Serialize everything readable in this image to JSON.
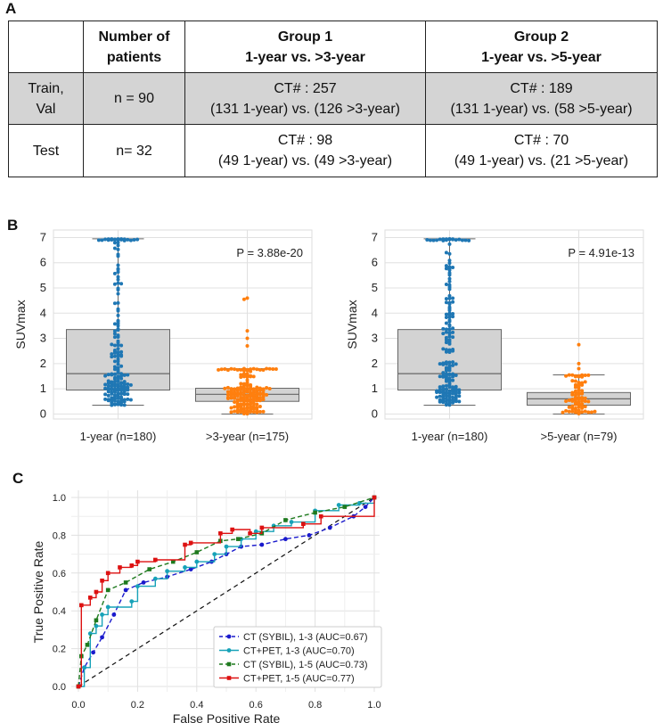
{
  "panel_labels": {
    "a": "A",
    "b": "B",
    "c": "C"
  },
  "table": {
    "headers": [
      {
        "line1": "",
        "line2": ""
      },
      {
        "line1": "Number of",
        "line2": "patients"
      },
      {
        "line1": "Group 1",
        "line2": "1-year vs. >3-year"
      },
      {
        "line1": "Group 2",
        "line2": "1-year vs. >5-year"
      }
    ],
    "rows": [
      {
        "label1": "Train,",
        "label2": "Val",
        "n": "n = 90",
        "g1_line1": "CT# : 257",
        "g1_line2": "(131 1-year) vs. (126 >3-year)",
        "g2_line1": "CT# : 189",
        "g2_line2": "(131 1-year) vs. (58 >5-year)"
      },
      {
        "label1": "Test",
        "label2": "",
        "n": "n= 32",
        "g1_line1": "CT# : 98",
        "g1_line2": "(49 1-year) vs. (49 >3-year)",
        "g2_line1": "CT# : 70",
        "g2_line2": "(49 1-year) vs. (21 >5-year)"
      }
    ]
  },
  "colors": {
    "blue": "#1f77b4",
    "orange": "#ff7f0e",
    "box_fill": "#d3d3d3",
    "grid": "#e0e0e0"
  },
  "chart_data": [
    {
      "type": "box+swarm",
      "ylabel": "SUVmax",
      "ylim": [
        -0.2,
        7.3
      ],
      "yticks": [
        "0",
        "1",
        "2",
        "3",
        "4",
        "5",
        "6",
        "7"
      ],
      "pvalue": "P = 3.88e-20",
      "categories": [
        "1-year (n=180)",
        ">3-year (n=175)"
      ],
      "boxes": [
        {
          "n": 180,
          "min": 0.35,
          "q1": 0.95,
          "median": 1.6,
          "q3": 3.35,
          "max": 6.95
        },
        {
          "n": 175,
          "min": 0.0,
          "q1": 0.5,
          "median": 0.78,
          "q3": 1.02,
          "max": 1.8,
          "outliers_top": [
            4.6,
            4.55,
            3.3,
            3.0,
            2.7
          ]
        }
      ]
    },
    {
      "type": "box+swarm",
      "ylabel": "SUVmax",
      "ylim": [
        -0.2,
        7.3
      ],
      "yticks": [
        "0",
        "1",
        "2",
        "3",
        "4",
        "5",
        "6",
        "7"
      ],
      "pvalue": "P = 4.91e-13",
      "categories": [
        "1-year (n=180)",
        ">5-year (n=79)"
      ],
      "boxes": [
        {
          "n": 180,
          "min": 0.35,
          "q1": 0.95,
          "median": 1.6,
          "q3": 3.35,
          "max": 6.95
        },
        {
          "n": 79,
          "min": 0.0,
          "q1": 0.35,
          "median": 0.6,
          "q3": 0.85,
          "max": 1.55,
          "outliers_top": [
            2.75,
            2.0,
            1.8
          ]
        }
      ]
    },
    {
      "type": "line",
      "title": "",
      "xlabel": "False Positive Rate",
      "ylabel": "True Positive Rate",
      "xlim": [
        0,
        1
      ],
      "ylim": [
        0,
        1
      ],
      "xticks": [
        "0.0",
        "0.2",
        "0.4",
        "0.6",
        "0.8",
        "1.0"
      ],
      "yticks": [
        "0.0",
        "0.2",
        "0.4",
        "0.6",
        "0.8",
        "1.0"
      ],
      "legend_position": "bottom-right",
      "series": [
        {
          "name": "CT (SYBIL), 1-3 (AUC=0.67)",
          "color": "#1a1acc",
          "dash": "dashed",
          "marker": "circle",
          "stepped": false,
          "x": [
            0,
            0.02,
            0.05,
            0.08,
            0.12,
            0.16,
            0.22,
            0.3,
            0.38,
            0.45,
            0.5,
            0.55,
            0.62,
            0.7,
            0.78,
            0.85,
            0.93,
            0.97,
            1.0
          ],
          "y": [
            0,
            0.1,
            0.18,
            0.26,
            0.38,
            0.51,
            0.55,
            0.58,
            0.62,
            0.66,
            0.7,
            0.74,
            0.75,
            0.78,
            0.8,
            0.84,
            0.9,
            0.95,
            1.0
          ]
        },
        {
          "name": "CT+PET,     1-3 (AUC=0.70)",
          "color": "#17a2b8",
          "dash": "solid",
          "marker": "circle",
          "stepped": true,
          "x": [
            0,
            0.02,
            0.04,
            0.06,
            0.08,
            0.1,
            0.18,
            0.2,
            0.26,
            0.3,
            0.36,
            0.4,
            0.46,
            0.5,
            0.55,
            0.6,
            0.66,
            0.72,
            0.8,
            0.88,
            0.95,
            1.0
          ],
          "y": [
            0,
            0.1,
            0.28,
            0.32,
            0.38,
            0.42,
            0.45,
            0.53,
            0.57,
            0.61,
            0.63,
            0.66,
            0.7,
            0.74,
            0.78,
            0.82,
            0.85,
            0.87,
            0.93,
            0.96,
            0.97,
            1.0
          ]
        },
        {
          "name": "CT (SYBIL), 1-5 (AUC=0.73)",
          "color": "#1e7a1e",
          "dash": "dashed",
          "marker": "square",
          "stepped": false,
          "x": [
            0,
            0.01,
            0.03,
            0.06,
            0.1,
            0.16,
            0.24,
            0.32,
            0.4,
            0.48,
            0.54,
            0.62,
            0.7,
            0.8,
            0.9,
            1.0
          ],
          "y": [
            0,
            0.16,
            0.22,
            0.35,
            0.51,
            0.55,
            0.62,
            0.66,
            0.71,
            0.77,
            0.78,
            0.81,
            0.88,
            0.92,
            0.95,
            1.0
          ]
        },
        {
          "name": "CT+PET,     1-5 (AUC=0.77)",
          "color": "#dd1111",
          "dash": "solid",
          "marker": "square",
          "stepped": true,
          "x": [
            0,
            0.01,
            0.04,
            0.06,
            0.08,
            0.1,
            0.14,
            0.18,
            0.2,
            0.26,
            0.36,
            0.38,
            0.48,
            0.52,
            0.58,
            0.62,
            0.76,
            0.82,
            1.0
          ],
          "y": [
            0,
            0.43,
            0.47,
            0.5,
            0.56,
            0.6,
            0.63,
            0.64,
            0.66,
            0.67,
            0.75,
            0.76,
            0.81,
            0.83,
            0.81,
            0.84,
            0.86,
            0.9,
            1.0
          ]
        }
      ]
    }
  ]
}
